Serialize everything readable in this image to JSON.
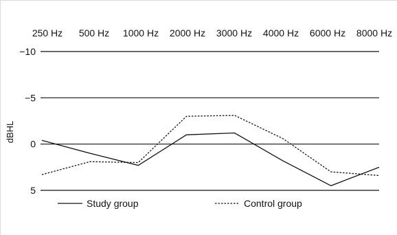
{
  "chart_data": {
    "type": "line",
    "x_categories": [
      "250 Hz",
      "500 Hz",
      "1000 Hz",
      "2000 Hz",
      "3000 Hz",
      "4000 Hz",
      "6000 Hz",
      "8000 Hz"
    ],
    "y_axis": {
      "label": "dBHL",
      "ticks": [
        -10,
        -5,
        0,
        5
      ],
      "tick_labels": [
        "−10",
        "−5",
        "0",
        "5"
      ],
      "range": [
        -10,
        5
      ],
      "inverted": true
    },
    "grid": {
      "horizontal": true
    },
    "series": [
      {
        "name": "Study group",
        "style": "solid",
        "color": "#111111",
        "values": [
          -0.4,
          1.0,
          2.3,
          -1.0,
          -1.2,
          1.8,
          4.5,
          2.5
        ]
      },
      {
        "name": "Control group",
        "style": "dashed",
        "color": "#111111",
        "values": [
          3.3,
          1.9,
          2.0,
          -3.0,
          -3.1,
          -0.6,
          3.0,
          3.4
        ]
      }
    ],
    "legend": {
      "placement": "bottom",
      "entries": [
        "Study group",
        "Control group"
      ]
    }
  }
}
